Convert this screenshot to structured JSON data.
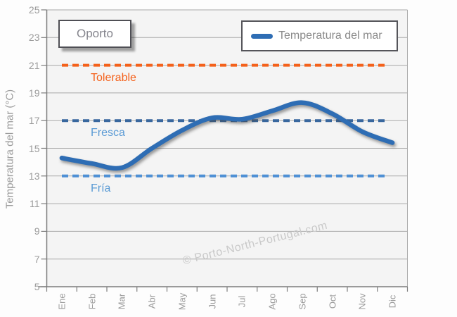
{
  "chart_data": {
    "type": "line",
    "categories": [
      "Ene",
      "Feb",
      "Mar",
      "Abr",
      "May",
      "Jun",
      "Jul",
      "Ago",
      "Sep",
      "Oct",
      "Nov",
      "Dic"
    ],
    "series": [
      {
        "name": "Temperatura del mar",
        "values": [
          14.3,
          13.9,
          13.6,
          15.0,
          16.3,
          17.2,
          17.1,
          17.7,
          18.3,
          17.5,
          16.2,
          15.4
        ],
        "color": "#2e6db4"
      }
    ],
    "title": "",
    "xlabel": "",
    "ylabel": "Temperatura del mar (°C)",
    "ylim": [
      5,
      25
    ],
    "ytick_step": 2,
    "grid": true,
    "legend_position": "top-right",
    "thresholds": [
      {
        "label": "Tolerable",
        "value": 21,
        "line_color": "#f4611b",
        "label_color": "#f4611b"
      },
      {
        "label": "Fresca",
        "value": 17,
        "line_color": "#38679e",
        "label_color": "#5b9bd5"
      },
      {
        "label": "Fría",
        "value": 13,
        "line_color": "#4e90d5",
        "label_color": "#5b9bd5"
      }
    ],
    "annotation_label": "Oporto",
    "watermark": "© Porto-North-Portugal.com"
  },
  "colors": {
    "plot_bg": "#f4f4f4",
    "page_bg": "#fdfdfd",
    "gridline": "#a9a9a9",
    "axis_line": "#7d7d7d",
    "axis_text": "#9b9b9b",
    "series_line": "#2e6db4"
  }
}
